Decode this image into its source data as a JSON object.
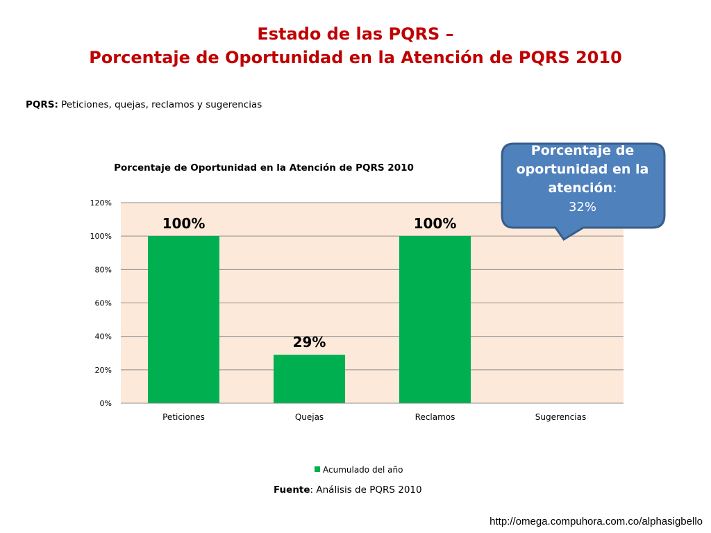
{
  "slide": {
    "title_line1": "Estado de las PQRS –",
    "title_line2": "Porcentaje de Oportunidad en la Atención de PQRS 2010",
    "definition_label": "PQRS:",
    "definition_text": " Peticiones, quejas, reclamos y sugerencias",
    "source_label": "Fuente",
    "source_text": ": Análisis de PQRS 2010",
    "url": "http://omega.compuhora.com.co/alphasigbello"
  },
  "callout": {
    "line1": "Porcentaje de",
    "line2": "oportunidad en la",
    "line3": "atención",
    "colon": ":",
    "value": "32%"
  },
  "colors": {
    "title": "#c00000",
    "bar": "#00b050",
    "plot_bg": "#fde9d9",
    "callout_fill": "#4f81bd",
    "callout_border": "#385d8a"
  },
  "chart_data": {
    "type": "bar",
    "title": "Porcentaje de Oportunidad en la Atención de PQRS 2010",
    "categories": [
      "Peticiones",
      "Quejas",
      "Reclamos",
      "Sugerencias"
    ],
    "series": [
      {
        "name": "Acumulado del año",
        "values": [
          100,
          29,
          100,
          null
        ]
      }
    ],
    "data_labels": [
      "100%",
      "29%",
      "100%",
      ""
    ],
    "ylim": [
      0,
      120
    ],
    "y_ticks": [
      0,
      20,
      40,
      60,
      80,
      100,
      120
    ],
    "y_tick_labels": [
      "0%",
      "20%",
      "40%",
      "60%",
      "80%",
      "100%",
      "120%"
    ],
    "grid": true,
    "legend_position": "bottom"
  }
}
